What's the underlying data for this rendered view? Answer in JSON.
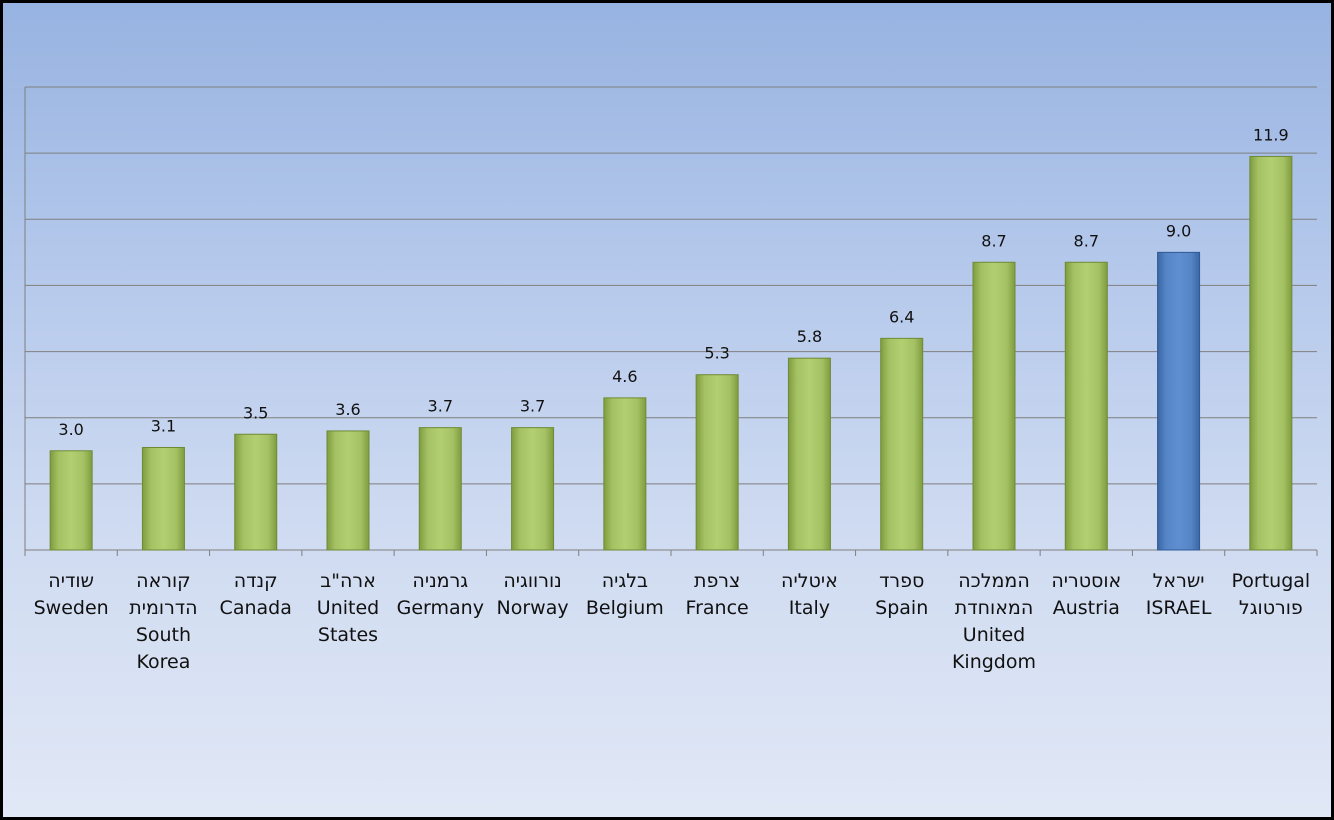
{
  "chart_data": {
    "type": "bar",
    "title": "",
    "xlabel": "",
    "ylabel": "",
    "ylim": [
      0,
      14
    ],
    "grid": true,
    "colors": {
      "default": "#9bbb59",
      "highlight": "#4f81bd"
    },
    "highlight_index": 12,
    "categories": [
      [
        "שודיה",
        "Sweden"
      ],
      [
        "קוראה",
        "הדרומית",
        "South",
        "Korea"
      ],
      [
        "קנדה",
        "Canada"
      ],
      [
        "ארה\"ב",
        "United",
        "States"
      ],
      [
        "גרמניה",
        "Germany"
      ],
      [
        "נורווגיה",
        "Norway"
      ],
      [
        "בלגיה",
        "Belgium"
      ],
      [
        "צרפת",
        "France"
      ],
      [
        "איטליה",
        "Italy"
      ],
      [
        "ספרד",
        "Spain"
      ],
      [
        "הממלכה",
        "המאוחדת",
        "United",
        "Kingdom"
      ],
      [
        "אוסטריה",
        "Austria"
      ],
      [
        "ישראל",
        "ISRAEL"
      ],
      [
        "Portugal",
        "פורטוגל"
      ]
    ],
    "values": [
      3.0,
      3.1,
      3.5,
      3.6,
      3.7,
      3.7,
      4.6,
      5.3,
      5.8,
      6.4,
      8.7,
      8.7,
      9.0,
      11.9
    ],
    "value_labels": [
      "3.0",
      "3.1",
      "3.5",
      "3.6",
      "3.7",
      "3.7",
      "4.6",
      "5.3",
      "5.8",
      "6.4",
      "8.7",
      "8.7",
      "9.0",
      "11.9"
    ]
  }
}
